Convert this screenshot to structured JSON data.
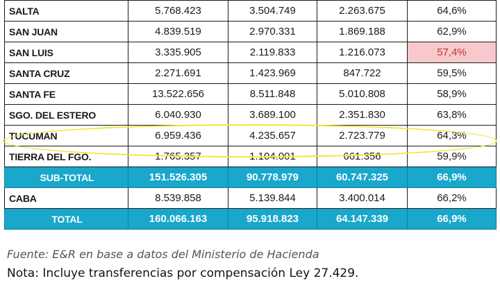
{
  "table": {
    "rows": [
      {
        "province": "SALTA",
        "col1": "5.768.423",
        "col2": "3.504.749",
        "col3": "2.263.675",
        "pct": "64,6%"
      },
      {
        "province": "SAN JUAN",
        "col1": "4.839.519",
        "col2": "2.970.331",
        "col3": "1.869.188",
        "pct": "62,9%"
      },
      {
        "province": "SAN LUIS",
        "col1": "3.335.905",
        "col2": "2.119.833",
        "col3": "1.216.073",
        "pct": "57,4%"
      },
      {
        "province": "SANTA CRUZ",
        "col1": "2.271.691",
        "col2": "1.423.969",
        "col3": "847.722",
        "pct": "59,5%"
      },
      {
        "province": "SANTA FE",
        "col1": "13.522.656",
        "col2": "8.511.848",
        "col3": "5.010.808",
        "pct": "58,9%"
      },
      {
        "province": "SGO. DEL ESTERO",
        "col1": "6.040.930",
        "col2": "3.689.100",
        "col3": "2.351.830",
        "pct": "63,8%"
      },
      {
        "province": "TUCUMAN",
        "col1": "6.959.436",
        "col2": "4.235.657",
        "col3": "2.723.779",
        "pct": "64,3%"
      },
      {
        "province": "TIERRA DEL FGO.",
        "col1": "1.765.357",
        "col2": "1.104.001",
        "col3": "661.356",
        "pct": "59,9%"
      }
    ],
    "subtotal": {
      "label": "SUB-TOTAL",
      "col1": "151.526.305",
      "col2": "90.778.979",
      "col3": "60.747.325",
      "pct": "66,9%"
    },
    "caba": {
      "province": "CABA",
      "col1": "8.539.858",
      "col2": "5.139.844",
      "col3": "3.400.014",
      "pct": "66,2%"
    },
    "total": {
      "label": "TOTAL",
      "col1": "160.066.163",
      "col2": "95.918.823",
      "col3": "64.147.339",
      "pct": "66,9%"
    }
  },
  "colors": {
    "summary_row": "#1aa7cc",
    "highlight_cell": "#f7c9cd",
    "ellipse": "#f0e633"
  },
  "footer": {
    "source": "Fuente: E&R en base a  datos del Ministerio de Hacienda",
    "note": "Nota: Incluye transferencias por compensación Ley 27.429."
  }
}
